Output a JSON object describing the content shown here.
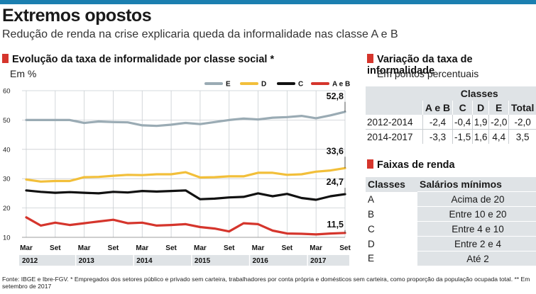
{
  "header": {
    "title": "Extremos opostos",
    "subtitle": "Redução de renda na crise explicaria queda da informalidade nas classe A e B"
  },
  "chart_section": {
    "heading": "Evolução da taxa de informalidade por classe social *",
    "unit": "Em %"
  },
  "chart_data": {
    "type": "line",
    "title": "Evolução da taxa de informalidade por classe social *",
    "ylabel": "Em %",
    "ylim": [
      10,
      60
    ],
    "yticks": [
      10,
      20,
      30,
      40,
      50,
      60
    ],
    "grid": true,
    "legend_position": "top-right",
    "x_tick_labels": [
      "Mar",
      "Set",
      "Mar",
      "Set",
      "Mar",
      "Set",
      "Mar",
      "Set",
      "Mar",
      "Set",
      "Mar",
      "Set"
    ],
    "x_tick_months": [
      0,
      6,
      12,
      18,
      24,
      30,
      36,
      42,
      48,
      54,
      60,
      66
    ],
    "years": [
      "2012",
      "2013",
      "2014",
      "2015",
      "2016",
      "2017"
    ],
    "x_months": [
      0,
      3,
      6,
      9,
      12,
      15,
      18,
      21,
      24,
      27,
      30,
      33,
      36,
      39,
      42,
      45,
      48,
      51,
      54,
      57,
      60,
      63,
      66
    ],
    "series": [
      {
        "name": "E",
        "color": "#9aabb4",
        "end_label": "52,8",
        "values": [
          50.0,
          50.0,
          50.0,
          50.0,
          49.0,
          49.5,
          49.3,
          49.2,
          48.2,
          48.0,
          48.4,
          49.0,
          48.6,
          49.3,
          50.0,
          50.5,
          50.2,
          50.8,
          51.0,
          51.4,
          50.6,
          51.6,
          52.8
        ]
      },
      {
        "name": "D",
        "color": "#f2bf3a",
        "end_label": "33,6",
        "values": [
          29.7,
          29.0,
          29.2,
          29.2,
          30.5,
          30.6,
          31.0,
          31.3,
          31.2,
          31.5,
          31.5,
          32.2,
          30.4,
          30.5,
          30.8,
          30.8,
          32.0,
          32.0,
          31.3,
          31.5,
          32.4,
          32.8,
          33.6
        ]
      },
      {
        "name": "C",
        "color": "#111111",
        "end_label": "24,7",
        "values": [
          26.0,
          25.5,
          25.2,
          25.4,
          25.2,
          25.0,
          25.5,
          25.3,
          25.8,
          25.6,
          25.8,
          26.0,
          23.0,
          23.2,
          23.6,
          23.8,
          25.0,
          24.0,
          24.8,
          23.4,
          22.8,
          24.0,
          24.7
        ]
      },
      {
        "name": "A e B",
        "color": "#d5352c",
        "end_label": "11,5",
        "values": [
          16.8,
          14.0,
          15.0,
          14.2,
          14.8,
          15.4,
          16.0,
          14.8,
          15.0,
          14.0,
          14.2,
          14.5,
          13.5,
          13.0,
          12.0,
          14.8,
          14.5,
          12.3,
          11.3,
          11.2,
          11.0,
          11.3,
          11.5
        ]
      }
    ]
  },
  "variation": {
    "heading": "Variação da taxa de informalidade",
    "unit": "Em pontos percentuais",
    "group_header": "Classes",
    "columns": [
      "A e B",
      "C",
      "D",
      "E",
      "Total"
    ],
    "rows": [
      {
        "label": "2012-2014",
        "values": [
          "-2,4",
          "-0,4",
          "1,9",
          "-2,0",
          "-2,0"
        ]
      },
      {
        "label": "2014-2017",
        "values": [
          "-3,3",
          "-1,5",
          "1,6",
          "4,4",
          "3,5"
        ]
      }
    ]
  },
  "income": {
    "heading": "Faixas de renda",
    "col_class": "Classes",
    "col_range": "Salários mínimos",
    "rows": [
      {
        "cls": "A",
        "range": "Acima de 20"
      },
      {
        "cls": "B",
        "range": "Entre 10 e 20"
      },
      {
        "cls": "C",
        "range": "Entre 4 e 10"
      },
      {
        "cls": "D",
        "range": "Entre 2 e 4"
      },
      {
        "cls": "E",
        "range": "Até 2"
      }
    ]
  },
  "source": "Fonte: IBGE e Ibre-FGV. * Empregados dos setores público e privado sem carteira, trabalhadores por conta própria e domésticos sem carteira, como proporção da população ocupada total. ** Em setembro de 2017",
  "colors": {
    "accent_bar": "#1b7fb0",
    "section_marker": "#d5352c",
    "table_band": "#dfe3e6",
    "year_band": "#dfe3e6"
  }
}
